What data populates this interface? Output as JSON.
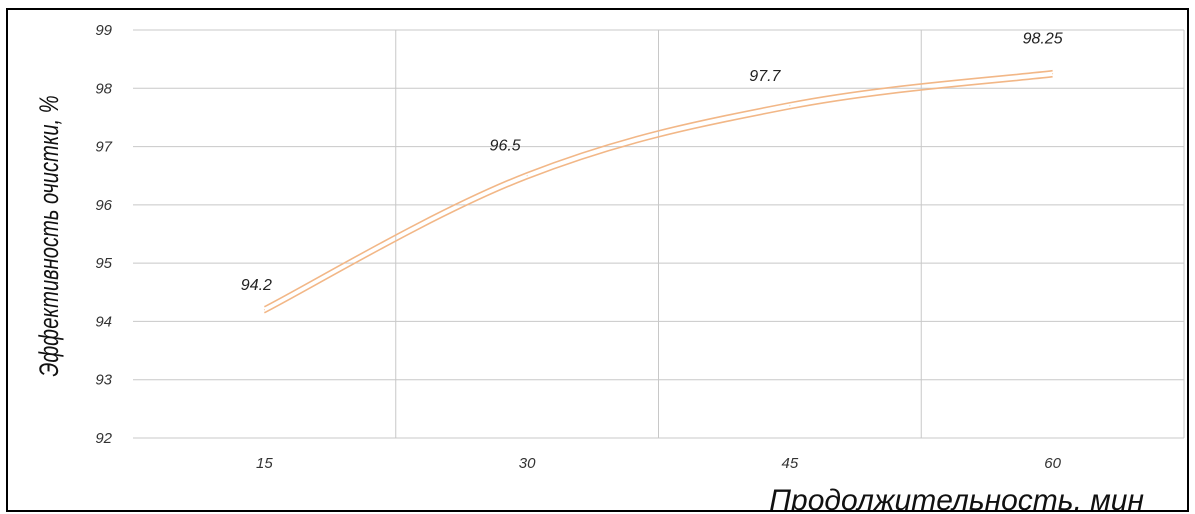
{
  "chart_data": {
    "type": "line",
    "title": "",
    "xlabel": "Продолжительность, мин",
    "ylabel": "Эффективность очистки, %",
    "categories": [
      "15",
      "30",
      "45",
      "60"
    ],
    "series": [
      {
        "values": [
          94.2,
          96.5,
          97.7,
          98.25
        ]
      }
    ],
    "data_labels": [
      "94.2",
      "96.5",
      "97.7",
      "98.25"
    ],
    "y_ticks": [
      "92",
      "93",
      "94",
      "95",
      "96",
      "97",
      "98",
      "99"
    ],
    "ylim": [
      92,
      99
    ],
    "grid": true,
    "legend": "none",
    "line_color": "#f2b787",
    "grid_color": "#c8c8c8"
  }
}
